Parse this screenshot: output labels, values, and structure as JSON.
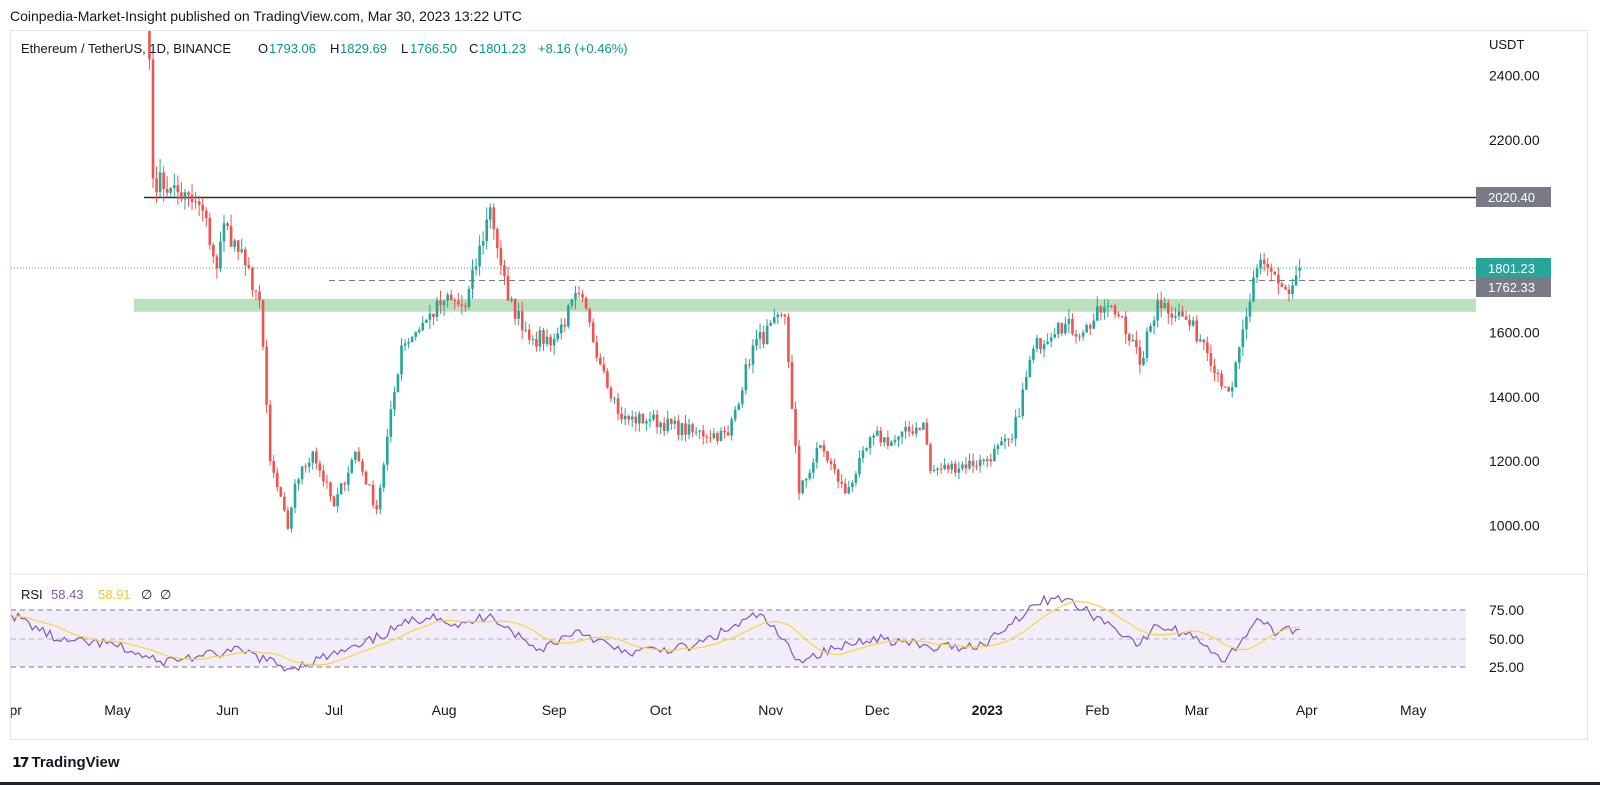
{
  "header": {
    "published_by": "Coinpedia-Market-Insight published on TradingView.com, Mar 30, 2023 13:22 UTC"
  },
  "legend": {
    "symbol": "Ethereum / TetherUS, 1D, BINANCE",
    "o_label": "O",
    "o_value": "1793.06",
    "h_label": "H",
    "h_value": "1829.69",
    "l_label": "L",
    "l_value": "1766.50",
    "c_label": "C",
    "c_value": "1801.23",
    "change": "+8.16 (+0.46%)"
  },
  "price_axis": {
    "currency": "USDT",
    "ticks": [
      "2400.00",
      "2200.00",
      "1600.00",
      "1400.00",
      "1200.00",
      "1000.00"
    ]
  },
  "price_tags": {
    "resistance": "2020.40",
    "last_price": "1801.23",
    "support_dashed": "1762.33"
  },
  "rsi": {
    "label": "RSI",
    "value": "58.43",
    "ma_value": "58.91",
    "extra1": "∅",
    "extra2": "∅",
    "ticks": [
      "75.00",
      "50.00",
      "25.00"
    ]
  },
  "time_axis": [
    "Apr",
    "May",
    "Jun",
    "Jul",
    "Aug",
    "Sep",
    "Oct",
    "Nov",
    "Dec",
    "2023",
    "Feb",
    "Mar",
    "Apr",
    "May"
  ],
  "footer": {
    "brand": "TradingView"
  },
  "colors": {
    "up": "#26a69a",
    "down": "#ef5350",
    "rsi_line": "#7e57c2",
    "rsi_ma": "#f5d547",
    "zone": "#a5d6a7",
    "resistance": "#2a2e39"
  },
  "chart_data": {
    "type": "candlestick",
    "interval": "1D",
    "ylim": [
      870,
      2520
    ],
    "levels": {
      "resistance": 2020.4,
      "support_dashed": 1762.33,
      "zone": [
        1665,
        1705
      ]
    },
    "closes_anchor": [
      [
        "2022-05-10",
        2450
      ],
      [
        "2022-05-11",
        2080
      ],
      [
        "2022-05-16",
        2050
      ],
      [
        "2022-05-25",
        1980
      ],
      [
        "2022-05-29",
        1800
      ],
      [
        "2022-05-31",
        1940
      ],
      [
        "2022-06-06",
        1810
      ],
      [
        "2022-06-10",
        1700
      ],
      [
        "2022-06-13",
        1200
      ],
      [
        "2022-06-18",
        990
      ],
      [
        "2022-06-20",
        1130
      ],
      [
        "2022-06-25",
        1230
      ],
      [
        "2022-07-01",
        1060
      ],
      [
        "2022-07-07",
        1230
      ],
      [
        "2022-07-13",
        1050
      ],
      [
        "2022-07-20",
        1560
      ],
      [
        "2022-07-27",
        1640
      ],
      [
        "2022-08-01",
        1700
      ],
      [
        "2022-08-07",
        1680
      ],
      [
        "2022-08-14",
        1990
      ],
      [
        "2022-08-19",
        1700
      ],
      [
        "2022-08-26",
        1580
      ],
      [
        "2022-09-01",
        1580
      ],
      [
        "2022-09-08",
        1720
      ],
      [
        "2022-09-15",
        1480
      ],
      [
        "2022-09-20",
        1330
      ],
      [
        "2022-09-28",
        1330
      ],
      [
        "2022-10-10",
        1290
      ],
      [
        "2022-10-20",
        1280
      ],
      [
        "2022-10-27",
        1560
      ],
      [
        "2022-11-05",
        1650
      ],
      [
        "2022-11-09",
        1100
      ],
      [
        "2022-11-15",
        1250
      ],
      [
        "2022-11-22",
        1100
      ],
      [
        "2022-11-30",
        1280
      ],
      [
        "2022-12-05",
        1260
      ],
      [
        "2022-12-14",
        1320
      ],
      [
        "2022-12-16",
        1170
      ],
      [
        "2022-12-31",
        1200
      ],
      [
        "2023-01-08",
        1270
      ],
      [
        "2023-01-14",
        1550
      ],
      [
        "2023-01-21",
        1630
      ],
      [
        "2023-01-28",
        1600
      ],
      [
        "2023-02-03",
        1680
      ],
      [
        "2023-02-08",
        1650
      ],
      [
        "2023-02-13",
        1500
      ],
      [
        "2023-02-18",
        1700
      ],
      [
        "2023-02-25",
        1650
      ],
      [
        "2023-03-03",
        1570
      ],
      [
        "2023-03-09",
        1430
      ],
      [
        "2023-03-11",
        1430
      ],
      [
        "2023-03-15",
        1650
      ],
      [
        "2023-03-18",
        1800
      ],
      [
        "2023-03-22",
        1790
      ],
      [
        "2023-03-27",
        1720
      ],
      [
        "2023-03-30",
        1801.23
      ]
    ],
    "last_bar": {
      "open": 1793.06,
      "high": 1829.69,
      "low": 1766.5,
      "close": 1801.23,
      "change": 8.16,
      "change_pct": 0.46
    },
    "rsi_anchor": [
      [
        "2022-04-01",
        72
      ],
      [
        "2022-04-15",
        48
      ],
      [
        "2022-04-30",
        45
      ],
      [
        "2022-05-12",
        30
      ],
      [
        "2022-05-25",
        35
      ],
      [
        "2022-06-05",
        40
      ],
      [
        "2022-06-18",
        24
      ],
      [
        "2022-07-08",
        43
      ],
      [
        "2022-07-20",
        62
      ],
      [
        "2022-07-29",
        72
      ],
      [
        "2022-08-05",
        60
      ],
      [
        "2022-08-14",
        72
      ],
      [
        "2022-08-27",
        40
      ],
      [
        "2022-09-08",
        58
      ],
      [
        "2022-09-20",
        38
      ],
      [
        "2022-10-10",
        43
      ],
      [
        "2022-10-29",
        72
      ],
      [
        "2022-11-09",
        32
      ],
      [
        "2022-11-20",
        42
      ],
      [
        "2022-11-30",
        52
      ],
      [
        "2022-12-16",
        42
      ],
      [
        "2022-12-31",
        45
      ],
      [
        "2023-01-14",
        80
      ],
      [
        "2023-01-21",
        88
      ],
      [
        "2023-02-05",
        62
      ],
      [
        "2023-02-13",
        45
      ],
      [
        "2023-02-18",
        62
      ],
      [
        "2023-03-01",
        52
      ],
      [
        "2023-03-09",
        30
      ],
      [
        "2023-03-18",
        68
      ],
      [
        "2023-03-24",
        55
      ],
      [
        "2023-03-30",
        58.43
      ]
    ],
    "rsi_ylim": [
      10,
      95
    ]
  }
}
